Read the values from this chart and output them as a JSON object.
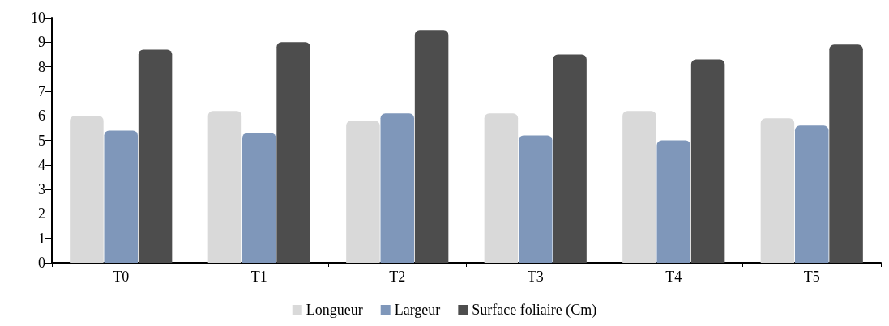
{
  "chart_data": {
    "type": "bar",
    "categories": [
      "T0",
      "T1",
      "T2",
      "T3",
      "T4",
      "T5"
    ],
    "series": [
      {
        "name": "Longueur",
        "color": "#d9d9d9",
        "values": [
          6.0,
          6.2,
          5.8,
          6.1,
          6.2,
          5.9
        ]
      },
      {
        "name": "Largeur",
        "color": "#7f97ba",
        "values": [
          5.4,
          5.3,
          6.1,
          5.2,
          5.0,
          5.6
        ]
      },
      {
        "name": "Surface foliaire (Cm)",
        "color": "#4d4d4d",
        "values": [
          8.7,
          9.0,
          9.5,
          8.5,
          8.3,
          8.9
        ]
      }
    ],
    "ylim": [
      0,
      10
    ],
    "yticks": [
      0,
      1,
      2,
      3,
      4,
      5,
      6,
      7,
      8,
      9,
      10
    ],
    "grid": false,
    "legend": "bottom"
  }
}
